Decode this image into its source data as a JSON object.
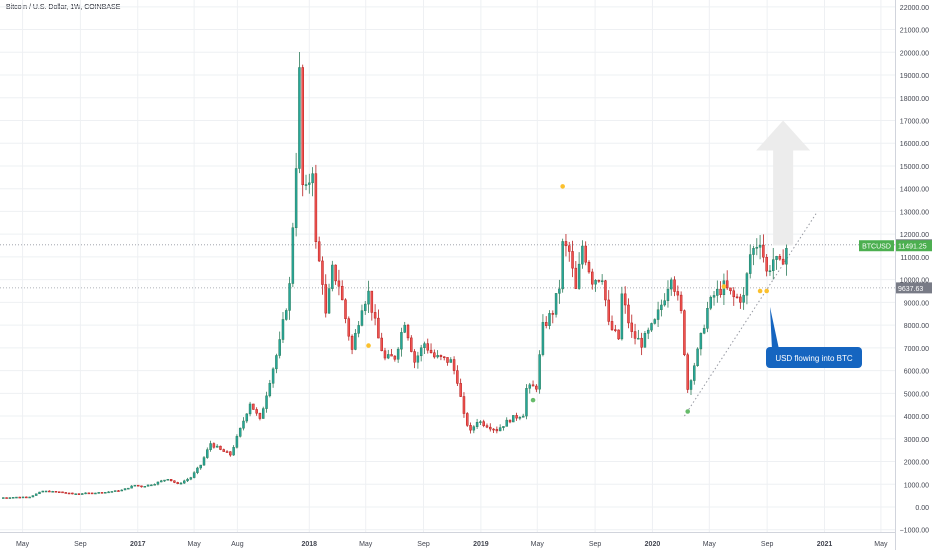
{
  "header": {
    "title": "Bitcoin / U.S. Dollar, 1W, COINBASE"
  },
  "colors": {
    "up": "#26a69a",
    "up_dark": "#2e7d5b",
    "down": "#ef5350",
    "down_dark": "#b71c1c",
    "grid": "#eef0f3",
    "axis_text": "#434651",
    "callout": "#1565c0",
    "badge_grey": "#787b86",
    "badge_green": "#4caf50",
    "arrow": "#ececec"
  },
  "chart_data": {
    "type": "candlestick",
    "symbol": "BTCUSD",
    "interval": "1W",
    "yticks": [
      -1000,
      0,
      1000,
      2000,
      3000,
      4000,
      5000,
      6000,
      7000,
      8000,
      9000,
      10000,
      11000,
      12000,
      13000,
      14000,
      15000,
      16000,
      17000,
      18000,
      19000,
      20000,
      21000,
      22000
    ],
    "ytick_labels": [
      "−1000.00",
      "0.00",
      "1000.00",
      "2000.00",
      "3000.00",
      "4000.00",
      "5000.00",
      "6000.00",
      "7000.00",
      "8000.00",
      "9000.00",
      "10000.00",
      "11000.00",
      "12000.00",
      "13000.00",
      "14000.00",
      "15000.00",
      "16000.00",
      "17000.00",
      "18000.00",
      "19000.00",
      "20000.00",
      "21000.00",
      "22000.00"
    ],
    "ylim": [
      -1100,
      22300
    ],
    "xlim": [
      "2016-03-14",
      "2021-05-31"
    ],
    "xticks": [
      {
        "date": "2016-05-01",
        "label": "May",
        "bold": false
      },
      {
        "date": "2016-09-01",
        "label": "Sep",
        "bold": false
      },
      {
        "date": "2017-01-01",
        "label": "2017",
        "bold": true
      },
      {
        "date": "2017-05-01",
        "label": "May",
        "bold": false
      },
      {
        "date": "2017-08-01",
        "label": "Aug",
        "bold": false
      },
      {
        "date": "2018-01-01",
        "label": "2018",
        "bold": true
      },
      {
        "date": "2018-05-01",
        "label": "May",
        "bold": false
      },
      {
        "date": "2018-09-01",
        "label": "Sep",
        "bold": false
      },
      {
        "date": "2019-01-01",
        "label": "2019",
        "bold": true
      },
      {
        "date": "2019-05-01",
        "label": "May",
        "bold": false
      },
      {
        "date": "2019-09-01",
        "label": "Sep",
        "bold": false
      },
      {
        "date": "2020-01-01",
        "label": "2020",
        "bold": true
      },
      {
        "date": "2020-05-01",
        "label": "May",
        "bold": false
      },
      {
        "date": "2020-09-01",
        "label": "Sep",
        "bold": false
      },
      {
        "date": "2021-01-01",
        "label": "2021",
        "bold": true
      },
      {
        "date": "2021-05-01",
        "label": "May",
        "bold": false
      }
    ],
    "price_anchors": [
      [
        "2016-03-14",
        410
      ],
      [
        "2016-05-16",
        450
      ],
      [
        "2016-06-13",
        700
      ],
      [
        "2016-07-18",
        660
      ],
      [
        "2016-08-15",
        580
      ],
      [
        "2016-09-19",
        610
      ],
      [
        "2016-10-24",
        650
      ],
      [
        "2016-11-28",
        740
      ],
      [
        "2016-12-26",
        960
      ],
      [
        "2017-01-09",
        900
      ],
      [
        "2017-02-06",
        1030
      ],
      [
        "2017-03-06",
        1250
      ],
      [
        "2017-03-27",
        1000
      ],
      [
        "2017-04-24",
        1300
      ],
      [
        "2017-05-15",
        1850
      ],
      [
        "2017-06-05",
        2800
      ],
      [
        "2017-06-26",
        2500
      ],
      [
        "2017-07-17",
        2300
      ],
      [
        "2017-08-07",
        3400
      ],
      [
        "2017-08-28",
        4600
      ],
      [
        "2017-09-18",
        3800
      ],
      [
        "2017-10-09",
        5600
      ],
      [
        "2017-10-30",
        7200
      ],
      [
        "2017-11-20",
        9700
      ],
      [
        "2017-12-04",
        15200
      ],
      [
        "2017-12-11",
        19000
      ],
      [
        "2017-12-18",
        14100
      ],
      [
        "2017-12-25",
        13800
      ],
      [
        "2018-01-08",
        15000
      ],
      [
        "2018-01-15",
        11500
      ],
      [
        "2018-01-29",
        10000
      ],
      [
        "2018-02-05",
        8400
      ],
      [
        "2018-02-19",
        10400
      ],
      [
        "2018-03-05",
        9800
      ],
      [
        "2018-03-19",
        8300
      ],
      [
        "2018-04-02",
        6900
      ],
      [
        "2018-04-23",
        8900
      ],
      [
        "2018-05-07",
        9400
      ],
      [
        "2018-05-28",
        7400
      ],
      [
        "2018-06-11",
        6500
      ],
      [
        "2018-07-02",
        6600
      ],
      [
        "2018-07-23",
        8200
      ],
      [
        "2018-08-13",
        6400
      ],
      [
        "2018-09-03",
        7200
      ],
      [
        "2018-09-24",
        6600
      ],
      [
        "2018-10-29",
        6400
      ],
      [
        "2018-11-12",
        5600
      ],
      [
        "2018-11-26",
        4000
      ],
      [
        "2018-12-10",
        3300
      ],
      [
        "2018-12-24",
        3800
      ],
      [
        "2019-01-14",
        3600
      ],
      [
        "2019-02-04",
        3400
      ],
      [
        "2019-03-04",
        3850
      ],
      [
        "2019-04-01",
        4100
      ],
      [
        "2019-04-08",
        5200
      ],
      [
        "2019-04-29",
        5300
      ],
      [
        "2019-05-13",
        7900
      ],
      [
        "2019-06-03",
        8600
      ],
      [
        "2019-06-17",
        9700
      ],
      [
        "2019-06-24",
        11500
      ],
      [
        "2019-07-08",
        11200
      ],
      [
        "2019-07-22",
        9500
      ],
      [
        "2019-08-05",
        11500
      ],
      [
        "2019-08-26",
        10000
      ],
      [
        "2019-09-16",
        10200
      ],
      [
        "2019-09-30",
        8000
      ],
      [
        "2019-10-21",
        7400
      ],
      [
        "2019-10-28",
        9300
      ],
      [
        "2019-11-18",
        7600
      ],
      [
        "2019-12-09",
        7200
      ],
      [
        "2020-01-06",
        8100
      ],
      [
        "2020-01-27",
        9300
      ],
      [
        "2020-02-10",
        10300
      ],
      [
        "2020-03-02",
        8500
      ],
      [
        "2020-03-16",
        5200
      ],
      [
        "2020-04-06",
        6800
      ],
      [
        "2020-04-27",
        8700
      ],
      [
        "2020-05-11",
        9300
      ],
      [
        "2020-06-01",
        9700
      ],
      [
        "2020-06-22",
        9200
      ],
      [
        "2020-07-13",
        9200
      ],
      [
        "2020-07-27",
        11100
      ],
      [
        "2020-08-17",
        11800
      ],
      [
        "2020-08-31",
        10300
      ],
      [
        "2020-09-14",
        10900
      ],
      [
        "2020-09-28",
        10600
      ],
      [
        "2020-10-12",
        11400
      ]
    ],
    "overlays": {
      "trendline": {
        "style": "dotted",
        "from": [
          "2020-03-09",
          4000
        ],
        "to": [
          "2020-12-14",
          12900
        ]
      },
      "dots": [
        {
          "date": "2018-05-07",
          "price": 7100,
          "color": "#fbc02d"
        },
        {
          "date": "2019-04-22",
          "price": 4700,
          "color": "#66bb6a"
        },
        {
          "date": "2019-06-24",
          "price": 14100,
          "color": "#fbc02d"
        },
        {
          "date": "2020-03-16",
          "price": 4200,
          "color": "#66bb6a"
        },
        {
          "date": "2020-06-01",
          "price": 9700,
          "color": "#fbc02d"
        },
        {
          "date": "2020-08-17",
          "price": 9500,
          "color": "#fbc02d"
        },
        {
          "date": "2020-08-31",
          "price": 9500,
          "color": "#fbc02d"
        }
      ],
      "up_arrow": {
        "date": "2020-10-05",
        "from_price": 11500,
        "to_price": 17000
      }
    },
    "annotation": {
      "text": "USD flowing into BTC",
      "pointer": [
        "2020-09-07",
        8800
      ]
    },
    "price_badges": [
      {
        "label": "11532.42",
        "price": 11532.42,
        "color": "grey"
      },
      {
        "label": "11491.25",
        "price": 11491.25,
        "color": "green",
        "ticker": "BTCUSD"
      },
      {
        "label": "9637.63",
        "price": 9637.63,
        "color": "grey"
      }
    ],
    "horizontal_levels": [
      11532.42,
      9637.63
    ]
  }
}
